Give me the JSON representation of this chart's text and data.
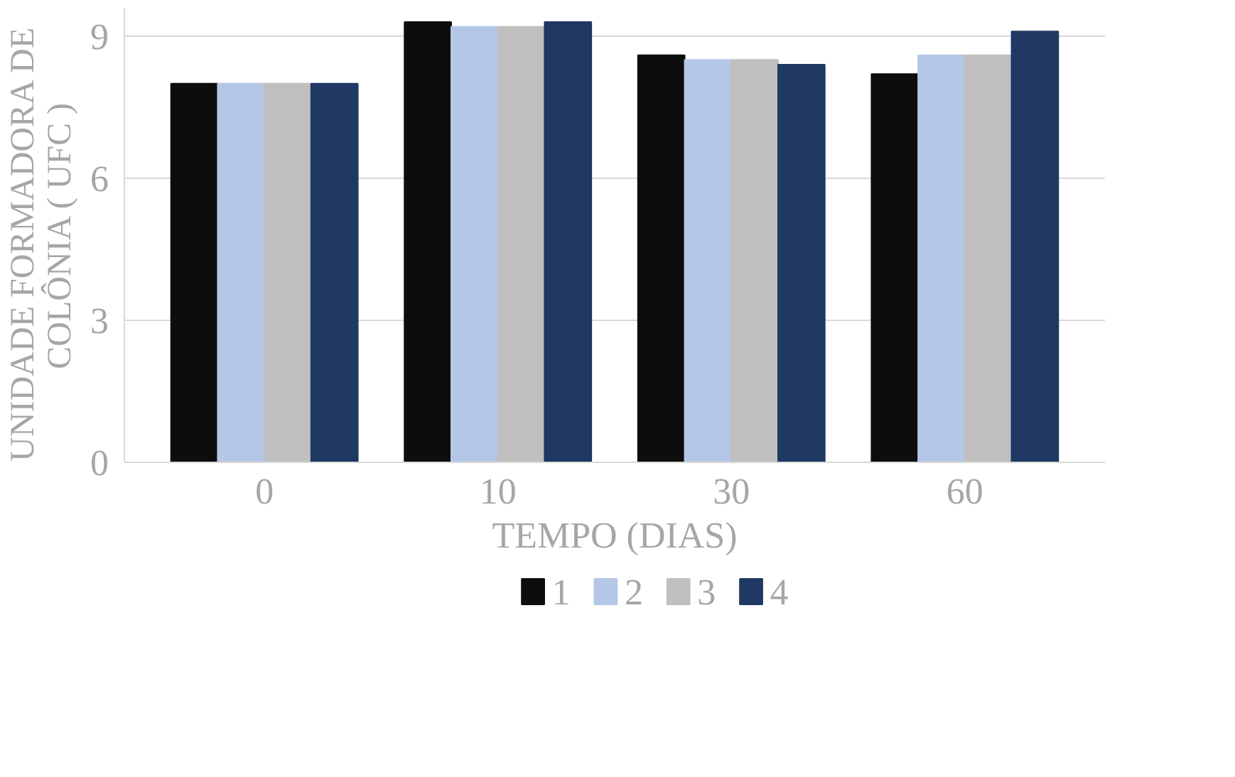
{
  "chart_data": {
    "type": "bar",
    "xlabel": "TEMPO (DIAS)",
    "ylabel": "UNIDADE  FORMADORA  DE COLÔNIA ( UFC )",
    "categories": [
      "0",
      "10",
      "30",
      "60"
    ],
    "series": [
      {
        "name": "1",
        "color": "#0d0d0d",
        "values": [
          8.0,
          9.3,
          8.6,
          8.2
        ]
      },
      {
        "name": "2",
        "color": "#b4c7e7",
        "values": [
          8.0,
          9.2,
          8.5,
          8.6
        ]
      },
      {
        "name": "3",
        "color": "#bfbfbf",
        "values": [
          8.0,
          9.2,
          8.5,
          8.6
        ]
      },
      {
        "name": "4",
        "color": "#1f3864",
        "values": [
          8.0,
          9.3,
          8.4,
          9.1
        ]
      }
    ],
    "ylim": [
      0,
      9.6
    ],
    "yticks": [
      0,
      3,
      6,
      9
    ],
    "grid": "y",
    "legend": "bottom"
  }
}
